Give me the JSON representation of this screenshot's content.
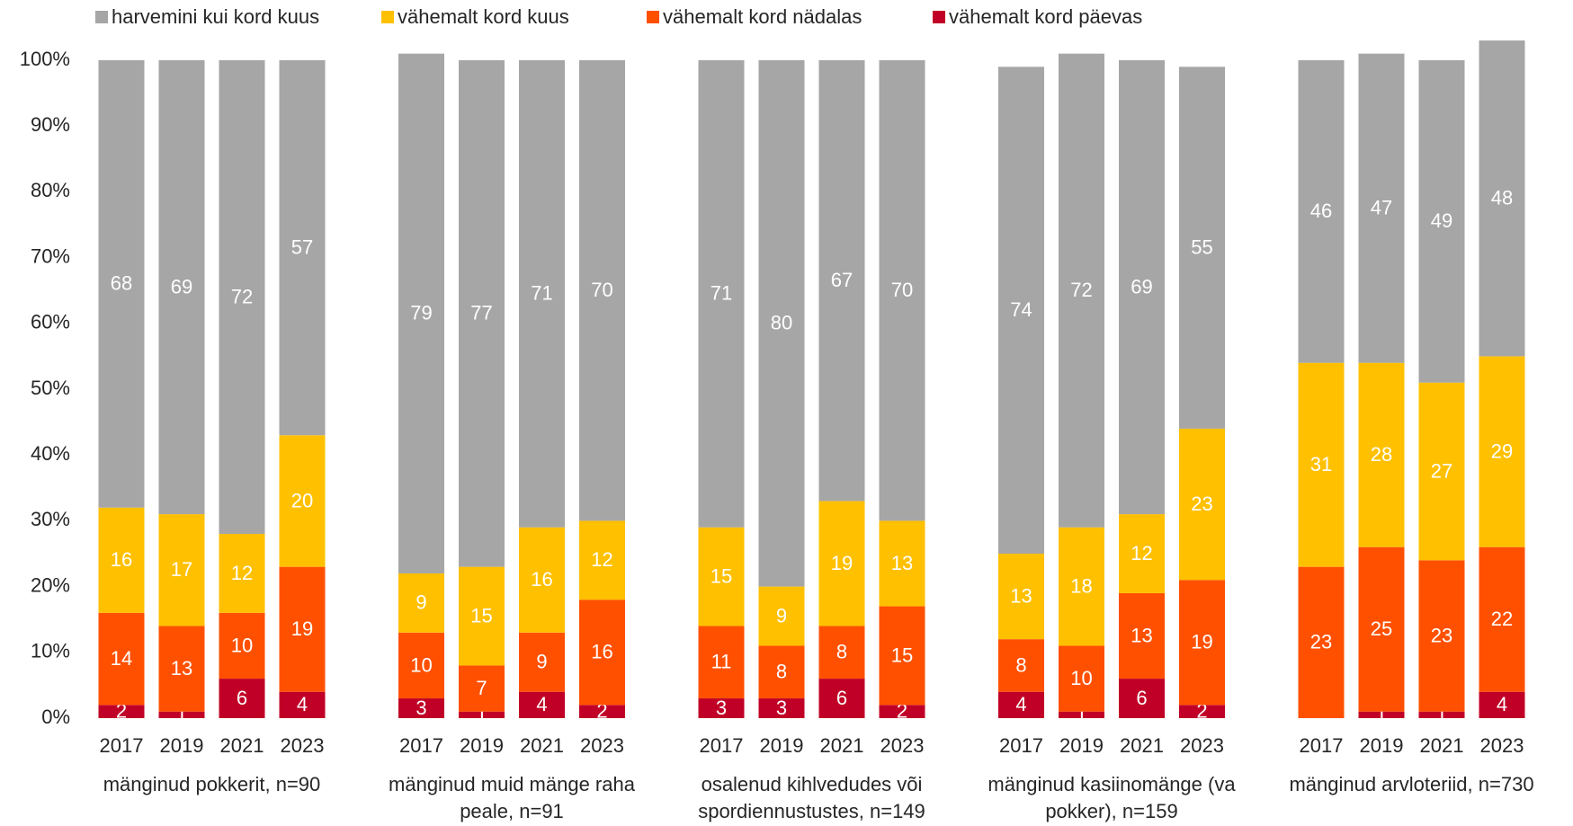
{
  "chart_data": {
    "type": "stacked_bar",
    "groups": [
      "mänginud pokkerit, n=90",
      "mänginud muid mänge raha peale, n=91",
      "osalenud kihlvedudes või spordiennustustes, n=149",
      "mänginud kasiinomänge (va pokker), n=159",
      "mänginud arvloteriid, n=730"
    ],
    "categories": [
      "2017",
      "2019",
      "2021",
      "2023",
      "2017",
      "2019",
      "2021",
      "2023",
      "2017",
      "2019",
      "2021",
      "2023",
      "2017",
      "2019",
      "2021",
      "2023",
      "2017",
      "2019",
      "2021",
      "2023"
    ],
    "series": [
      {
        "name": "harvemini kui kord kuus",
        "color": "#a6a6a6",
        "values": [
          68,
          69,
          72,
          57,
          79,
          77,
          71,
          70,
          71,
          80,
          67,
          70,
          74,
          72,
          69,
          55,
          46,
          47,
          49,
          48
        ]
      },
      {
        "name": "vähemalt kord kuus",
        "color": "#ffc000",
        "values": [
          16,
          17,
          12,
          20,
          9,
          15,
          16,
          12,
          15,
          9,
          19,
          13,
          13,
          18,
          12,
          23,
          31,
          28,
          27,
          29
        ]
      },
      {
        "name": "vähemalt kord nädalas",
        "color": "#ff5000",
        "values": [
          14,
          13,
          10,
          19,
          10,
          7,
          9,
          16,
          11,
          8,
          8,
          15,
          8,
          10,
          13,
          19,
          23,
          25,
          23,
          22
        ]
      },
      {
        "name": "vähemalt kord päevas",
        "color": "#c00026",
        "values": [
          2,
          1,
          6,
          4,
          3,
          1,
          4,
          2,
          3,
          3,
          6,
          2,
          4,
          1,
          6,
          2,
          null,
          1,
          1,
          4
        ]
      }
    ],
    "ylim": [
      0,
      100
    ],
    "yticks": [
      {
        "value": 0,
        "label": "0%"
      },
      {
        "value": 10,
        "label": "10%"
      },
      {
        "value": 20,
        "label": "20%"
      },
      {
        "value": 30,
        "label": "30%"
      },
      {
        "value": 40,
        "label": "40%"
      },
      {
        "value": 50,
        "label": "50%"
      },
      {
        "value": 60,
        "label": "60%"
      },
      {
        "value": 70,
        "label": "70%"
      },
      {
        "value": 80,
        "label": "80%"
      },
      {
        "value": 90,
        "label": "90%"
      },
      {
        "value": 100,
        "label": "100%"
      }
    ],
    "legend": "top"
  }
}
